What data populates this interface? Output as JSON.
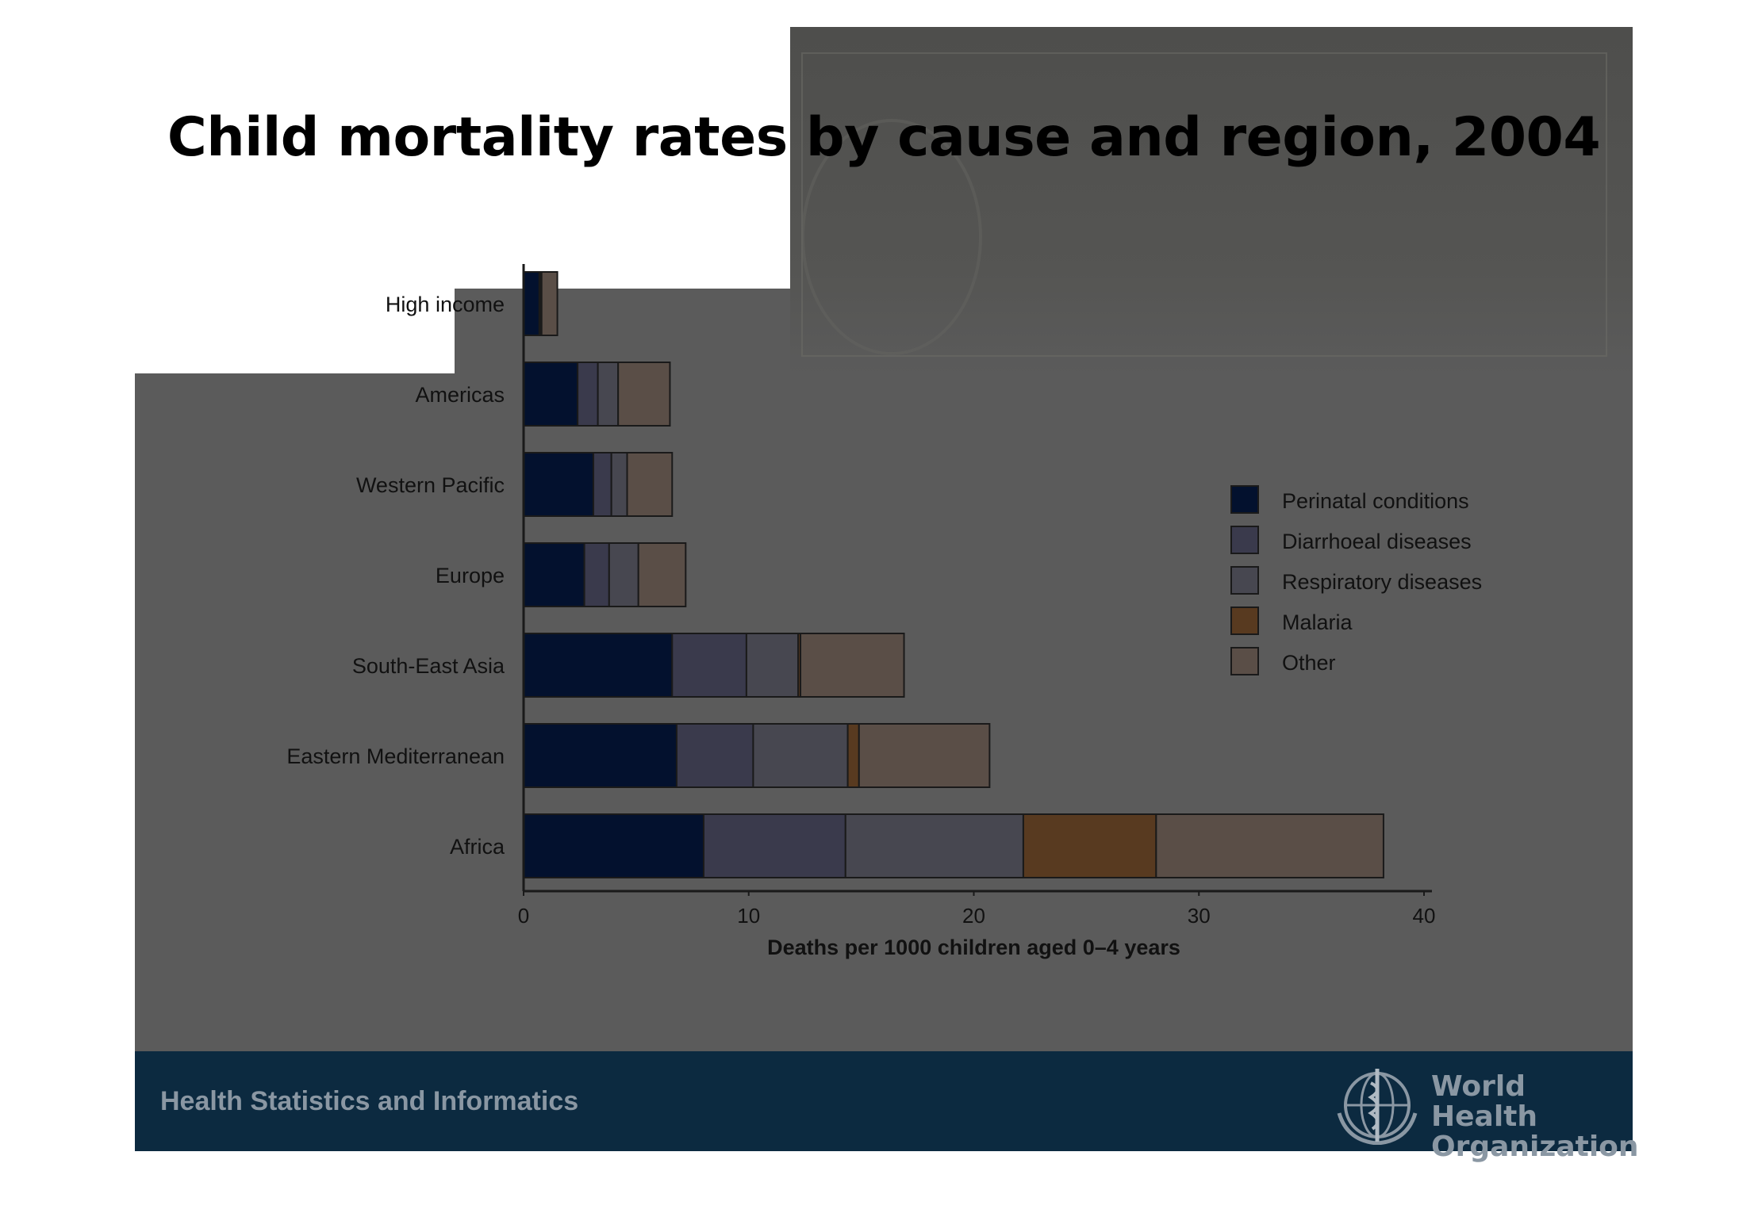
{
  "title": "Child mortality rates by cause and region, 2004",
  "footer": {
    "department": "Health Statistics and Informatics",
    "org_line1": "World Health",
    "org_line2": "Organization"
  },
  "chart_data": {
    "type": "bar",
    "orientation": "horizontal",
    "stacked": true,
    "title": "Child mortality rates by cause and region, 2004",
    "xlabel": "Deaths per 1000 children aged 0–4 years",
    "ylabel": "",
    "xlim": [
      0,
      40
    ],
    "xticks": [
      0,
      10,
      20,
      30,
      40
    ],
    "grid": false,
    "legend_position": "right",
    "categories": [
      "High income",
      "Americas",
      "Western Pacific",
      "Europe",
      "South-East Asia",
      "Eastern Mediterranean",
      "Africa"
    ],
    "series": [
      {
        "name": "Perinatal conditions",
        "color": "#03112e",
        "values": [
          0.7,
          2.4,
          3.1,
          2.7,
          6.6,
          6.8,
          8.0
        ]
      },
      {
        "name": "Diarrhoeal diseases",
        "color": "#3a3a4c",
        "values": [
          0.05,
          0.9,
          0.8,
          1.1,
          3.3,
          3.4,
          6.3
        ]
      },
      {
        "name": "Respiratory diseases",
        "color": "#474750",
        "values": [
          0.05,
          0.9,
          0.7,
          1.3,
          2.3,
          4.2,
          7.9
        ]
      },
      {
        "name": "Malaria",
        "color": "#583a20",
        "values": [
          0,
          0,
          0,
          0,
          0.1,
          0.5,
          5.9
        ]
      },
      {
        "name": "Other",
        "color": "#5a4e47",
        "values": [
          0.7,
          2.3,
          2.0,
          2.1,
          4.6,
          5.8,
          10.1
        ]
      }
    ]
  }
}
